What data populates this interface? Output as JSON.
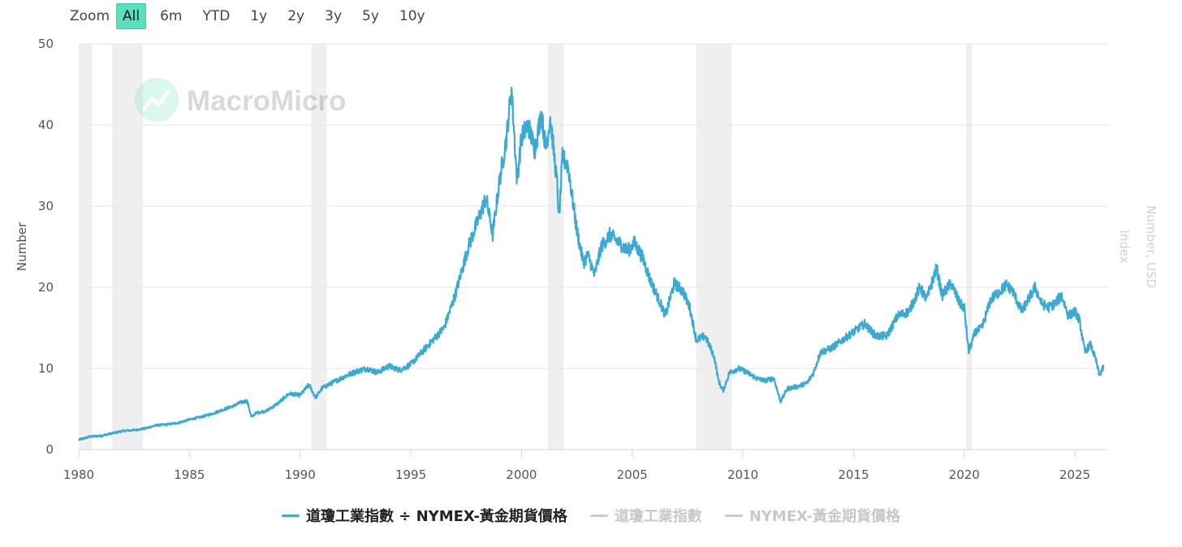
{
  "zoom": {
    "label": "Zoom",
    "buttons": [
      "All",
      "6m",
      "YTD",
      "1y",
      "2y",
      "3y",
      "5y",
      "10y"
    ],
    "active": "All"
  },
  "watermark": "MacroMicro",
  "colors": {
    "series": "#3aa9d4",
    "recession": "#efefef",
    "grid": "#e6e6e6",
    "active_zoom": "#59e0c1"
  },
  "chart_data": {
    "type": "line",
    "ylabel": "Number",
    "ylabel_right": [
      "Number, USD",
      "Index"
    ],
    "ylim": [
      0,
      50
    ],
    "xlim": [
      1980,
      2026.5
    ],
    "yticks": [
      0,
      10,
      20,
      30,
      40,
      50
    ],
    "xticks": [
      1980,
      1985,
      1990,
      1995,
      2000,
      2005,
      2010,
      2015,
      2020,
      2025
    ],
    "recessions": [
      [
        1980.0,
        1980.6
      ],
      [
        1981.5,
        1982.9
      ],
      [
        1990.5,
        1991.2
      ],
      [
        2001.2,
        2001.9
      ],
      [
        2007.9,
        2009.5
      ],
      [
        2020.1,
        2020.35
      ]
    ],
    "series": [
      {
        "name": "道瓊工業指數 ÷ NYMEX-黃金期貨價格",
        "visible": true,
        "points": [
          [
            1980.0,
            1.2
          ],
          [
            1980.5,
            1.6
          ],
          [
            1981.0,
            1.7
          ],
          [
            1981.5,
            2.0
          ],
          [
            1982.0,
            2.3
          ],
          [
            1982.5,
            2.4
          ],
          [
            1983.0,
            2.6
          ],
          [
            1983.5,
            3.0
          ],
          [
            1984.0,
            3.1
          ],
          [
            1984.5,
            3.3
          ],
          [
            1985.0,
            3.7
          ],
          [
            1985.5,
            4.0
          ],
          [
            1986.0,
            4.4
          ],
          [
            1986.5,
            4.9
          ],
          [
            1987.0,
            5.4
          ],
          [
            1987.3,
            5.8
          ],
          [
            1987.6,
            6.0
          ],
          [
            1987.8,
            4.0
          ],
          [
            1988.0,
            4.5
          ],
          [
            1988.5,
            4.8
          ],
          [
            1989.0,
            5.7
          ],
          [
            1989.5,
            6.9
          ],
          [
            1990.0,
            6.7
          ],
          [
            1990.4,
            8.0
          ],
          [
            1990.7,
            6.4
          ],
          [
            1991.0,
            7.6
          ],
          [
            1991.5,
            8.3
          ],
          [
            1992.0,
            9.0
          ],
          [
            1992.5,
            9.6
          ],
          [
            1993.0,
            10.0
          ],
          [
            1993.5,
            9.5
          ],
          [
            1994.0,
            10.3
          ],
          [
            1994.5,
            9.8
          ],
          [
            1995.0,
            10.5
          ],
          [
            1995.5,
            12.0
          ],
          [
            1996.0,
            13.5
          ],
          [
            1996.5,
            15.0
          ],
          [
            1997.0,
            19.0
          ],
          [
            1997.3,
            22.0
          ],
          [
            1997.6,
            25.0
          ],
          [
            1998.0,
            28.0
          ],
          [
            1998.4,
            31.0
          ],
          [
            1998.7,
            26.5
          ],
          [
            1999.0,
            33.0
          ],
          [
            1999.3,
            38.0
          ],
          [
            1999.55,
            44.5
          ],
          [
            1999.8,
            33.0
          ],
          [
            2000.0,
            38.5
          ],
          [
            2000.3,
            40.0
          ],
          [
            2000.6,
            37.0
          ],
          [
            2000.9,
            41.5
          ],
          [
            2001.1,
            37.0
          ],
          [
            2001.3,
            41.0
          ],
          [
            2001.6,
            33.0
          ],
          [
            2001.7,
            28.5
          ],
          [
            2001.85,
            36.0
          ],
          [
            2002.1,
            35.0
          ],
          [
            2002.5,
            27.0
          ],
          [
            2002.8,
            23.0
          ],
          [
            2003.0,
            24.0
          ],
          [
            2003.3,
            21.5
          ],
          [
            2003.6,
            25.0
          ],
          [
            2004.0,
            26.5
          ],
          [
            2004.4,
            25.5
          ],
          [
            2004.8,
            24.5
          ],
          [
            2005.1,
            25.5
          ],
          [
            2005.5,
            23.5
          ],
          [
            2005.8,
            21.0
          ],
          [
            2006.2,
            18.5
          ],
          [
            2006.5,
            16.5
          ],
          [
            2006.9,
            20.5
          ],
          [
            2007.3,
            19.5
          ],
          [
            2007.6,
            17.5
          ],
          [
            2007.9,
            13.5
          ],
          [
            2008.3,
            14.0
          ],
          [
            2008.7,
            11.5
          ],
          [
            2008.9,
            8.5
          ],
          [
            2009.1,
            7.2
          ],
          [
            2009.4,
            9.5
          ],
          [
            2009.8,
            10.0
          ],
          [
            2010.2,
            9.5
          ],
          [
            2010.6,
            8.8
          ],
          [
            2011.0,
            8.5
          ],
          [
            2011.4,
            8.8
          ],
          [
            2011.7,
            5.9
          ],
          [
            2012.0,
            7.5
          ],
          [
            2012.5,
            7.8
          ],
          [
            2012.9,
            8.2
          ],
          [
            2013.2,
            9.5
          ],
          [
            2013.5,
            12.0
          ],
          [
            2014.0,
            12.5
          ],
          [
            2014.5,
            13.5
          ],
          [
            2015.0,
            14.5
          ],
          [
            2015.5,
            15.5
          ],
          [
            2016.0,
            14.0
          ],
          [
            2016.5,
            14.0
          ],
          [
            2017.0,
            16.5
          ],
          [
            2017.5,
            17.0
          ],
          [
            2018.0,
            20.0
          ],
          [
            2018.3,
            18.5
          ],
          [
            2018.75,
            22.4
          ],
          [
            2019.0,
            19.0
          ],
          [
            2019.4,
            20.5
          ],
          [
            2019.8,
            18.0
          ],
          [
            2020.0,
            17.5
          ],
          [
            2020.2,
            12.0
          ],
          [
            2020.5,
            14.5
          ],
          [
            2020.8,
            15.0
          ],
          [
            2021.2,
            18.5
          ],
          [
            2021.6,
            19.5
          ],
          [
            2021.9,
            20.3
          ],
          [
            2022.2,
            19.5
          ],
          [
            2022.6,
            17.0
          ],
          [
            2022.9,
            18.5
          ],
          [
            2023.2,
            20.0
          ],
          [
            2023.5,
            18.0
          ],
          [
            2023.8,
            17.5
          ],
          [
            2024.1,
            18.0
          ],
          [
            2024.4,
            19.0
          ],
          [
            2024.7,
            16.5
          ],
          [
            2025.0,
            17.0
          ],
          [
            2025.2,
            16.0
          ],
          [
            2025.45,
            12.0
          ],
          [
            2025.7,
            13.0
          ],
          [
            2025.95,
            11.0
          ],
          [
            2026.1,
            9.2
          ],
          [
            2026.3,
            10.2
          ]
        ]
      },
      {
        "name": "道瓊工業指數",
        "visible": false,
        "points": []
      },
      {
        "name": "NYMEX-黃金期貨價格",
        "visible": false,
        "points": []
      }
    ]
  }
}
